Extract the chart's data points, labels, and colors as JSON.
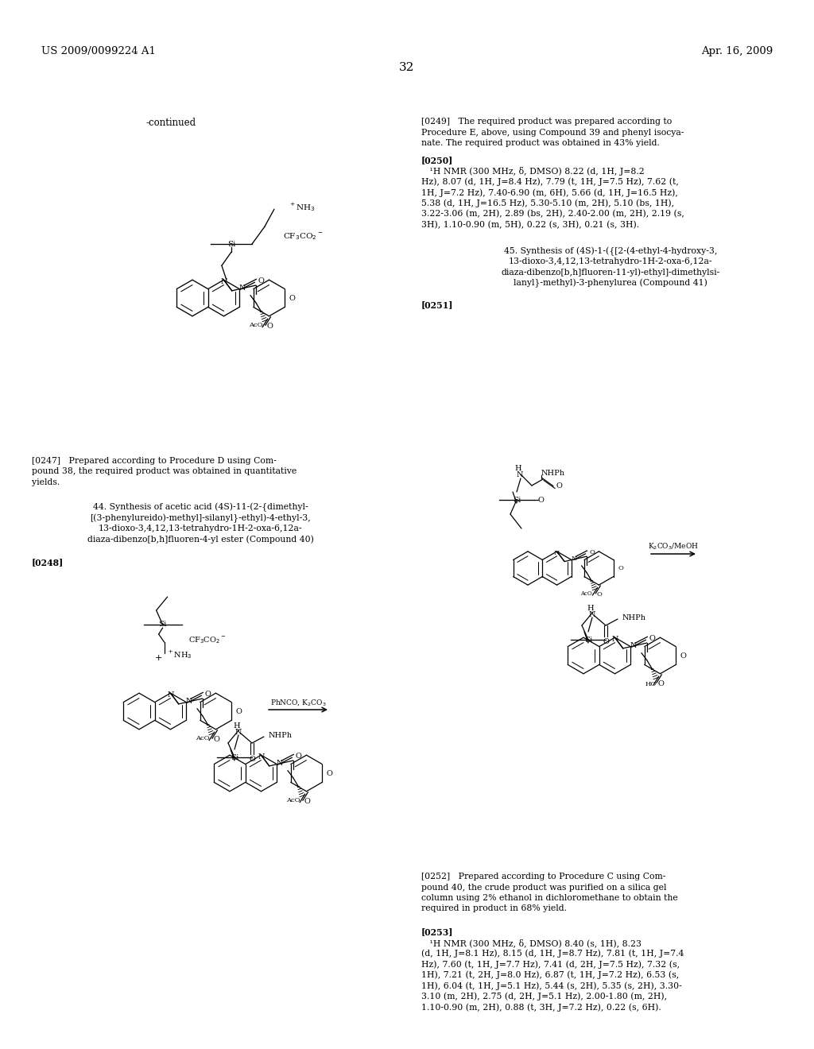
{
  "bg_color": "#ffffff",
  "header_left": "US 2009/0099224 A1",
  "header_right": "Apr. 16, 2009",
  "page_number": "32",
  "continued_label": "-continued",
  "para_0247": "[0247]   Prepared according to Procedure D using Compound 38, the required product was obtained in quantitative yields.",
  "sec44_line1": "44. Synthesis of acetic acid (4S)-11-(2-{dimethyl-",
  "sec44_line2": "[(3-phenylureido)-methyl]-silanyl}-ethyl)-4-ethyl-3,",
  "sec44_line3": "13-dioxo-3,4,12,13-tetrahydro-1H-2-oxa-6,12a-",
  "sec44_line4": "diaza-dibenzo[b,h]fluoren-4-yl ester (Compound 40)",
  "para_0248": "[0248]",
  "para_0249_lines": [
    "[0249]   The required product was prepared according to",
    "Procedure E, above, using Compound 39 and phenyl isocya-",
    "nate. The required product was obtained in 43% yield."
  ],
  "para_0250_head": "[0250]",
  "para_0250_nmr": "   ¹H NMR (300 MHz, δ, DMSO) 8.22 (d, 1H, J=8.2 Hz), 8.07 (d, 1H, J=8.4 Hz), 7.79 (t, 1H, J=7.5 Hz), 7.62 (t, 1H, J=7.2 Hz), 7.40-6.90 (m, 6H), 5.66 (d, 1H, J=16.5 Hz), 5.38 (d, 1H, J=16.5 Hz), 5.30-5.10 (m, 2H), 5.10 (bs, 1H), 3.22-3.06 (m, 2H), 2.89 (bs, 2H), 2.40-2.00 (m, 2H), 2.19 (s, 3H), 1.10-0.90 (m, 5H), 0.22 (s, 3H), 0.21 (s, 3H).",
  "sec45_line1": "45. Synthesis of (4S)-1-({[2-(4-ethyl-4-hydroxy-3,",
  "sec45_line2": "13-dioxo-3,4,12,13-tetrahydro-1H-2-oxa-6,12a-",
  "sec45_line3": "diaza-dibenzo[b,h]fluoren-11-yl)-ethyl]-dimethylsi-",
  "sec45_line4": "lanyl}-methyl)-3-phenylurea (Compound 41)",
  "para_0251": "[0251]",
  "reagent_phncok2co3": "PhNCO, K₂CO₃",
  "reagent_k2co3meoh": "K₂CO₃/MeOH",
  "para_0252_lines": [
    "[0252]   Prepared according to Procedure C using Com-",
    "pound 40, the crude product was purified on a silica gel",
    "column using 2% ethanol in dichloromethane to obtain the",
    "required in product in 68% yield."
  ],
  "para_0253_head": "[0253]",
  "para_0253_nmr": "   ¹H NMR (300 MHz, δ, DMSO) 8.40 (s, 1H), 8.23 (d, 1H, J=8.1 Hz), 8.15 (d, 1H, J=8.7 Hz), 7.81 (t, 1H, J=7.4 Hz), 7.60 (t, 1H, J=7.7 Hz), 7.41 (d, 2H, J=7.5 Hz), 7.32 (s, 1H), 7.21 (t, 2H, J=8.0 Hz), 6.87 (t, 1H, J=7.2 Hz), 6.53 (s, 1H), 6.04 (t, 1H, J=5.1 Hz), 5.44 (s, 2H), 5.35 (s, 2H), 3.30-3.10 (m, 2H), 2.75 (d, 2H, J=5.1 Hz), 2.00-1.80 (m, 2H), 1.10-0.90 (m, 2H), 0.88 (t, 3H, J=7.2 Hz), 0.22 (s, 6H)."
}
